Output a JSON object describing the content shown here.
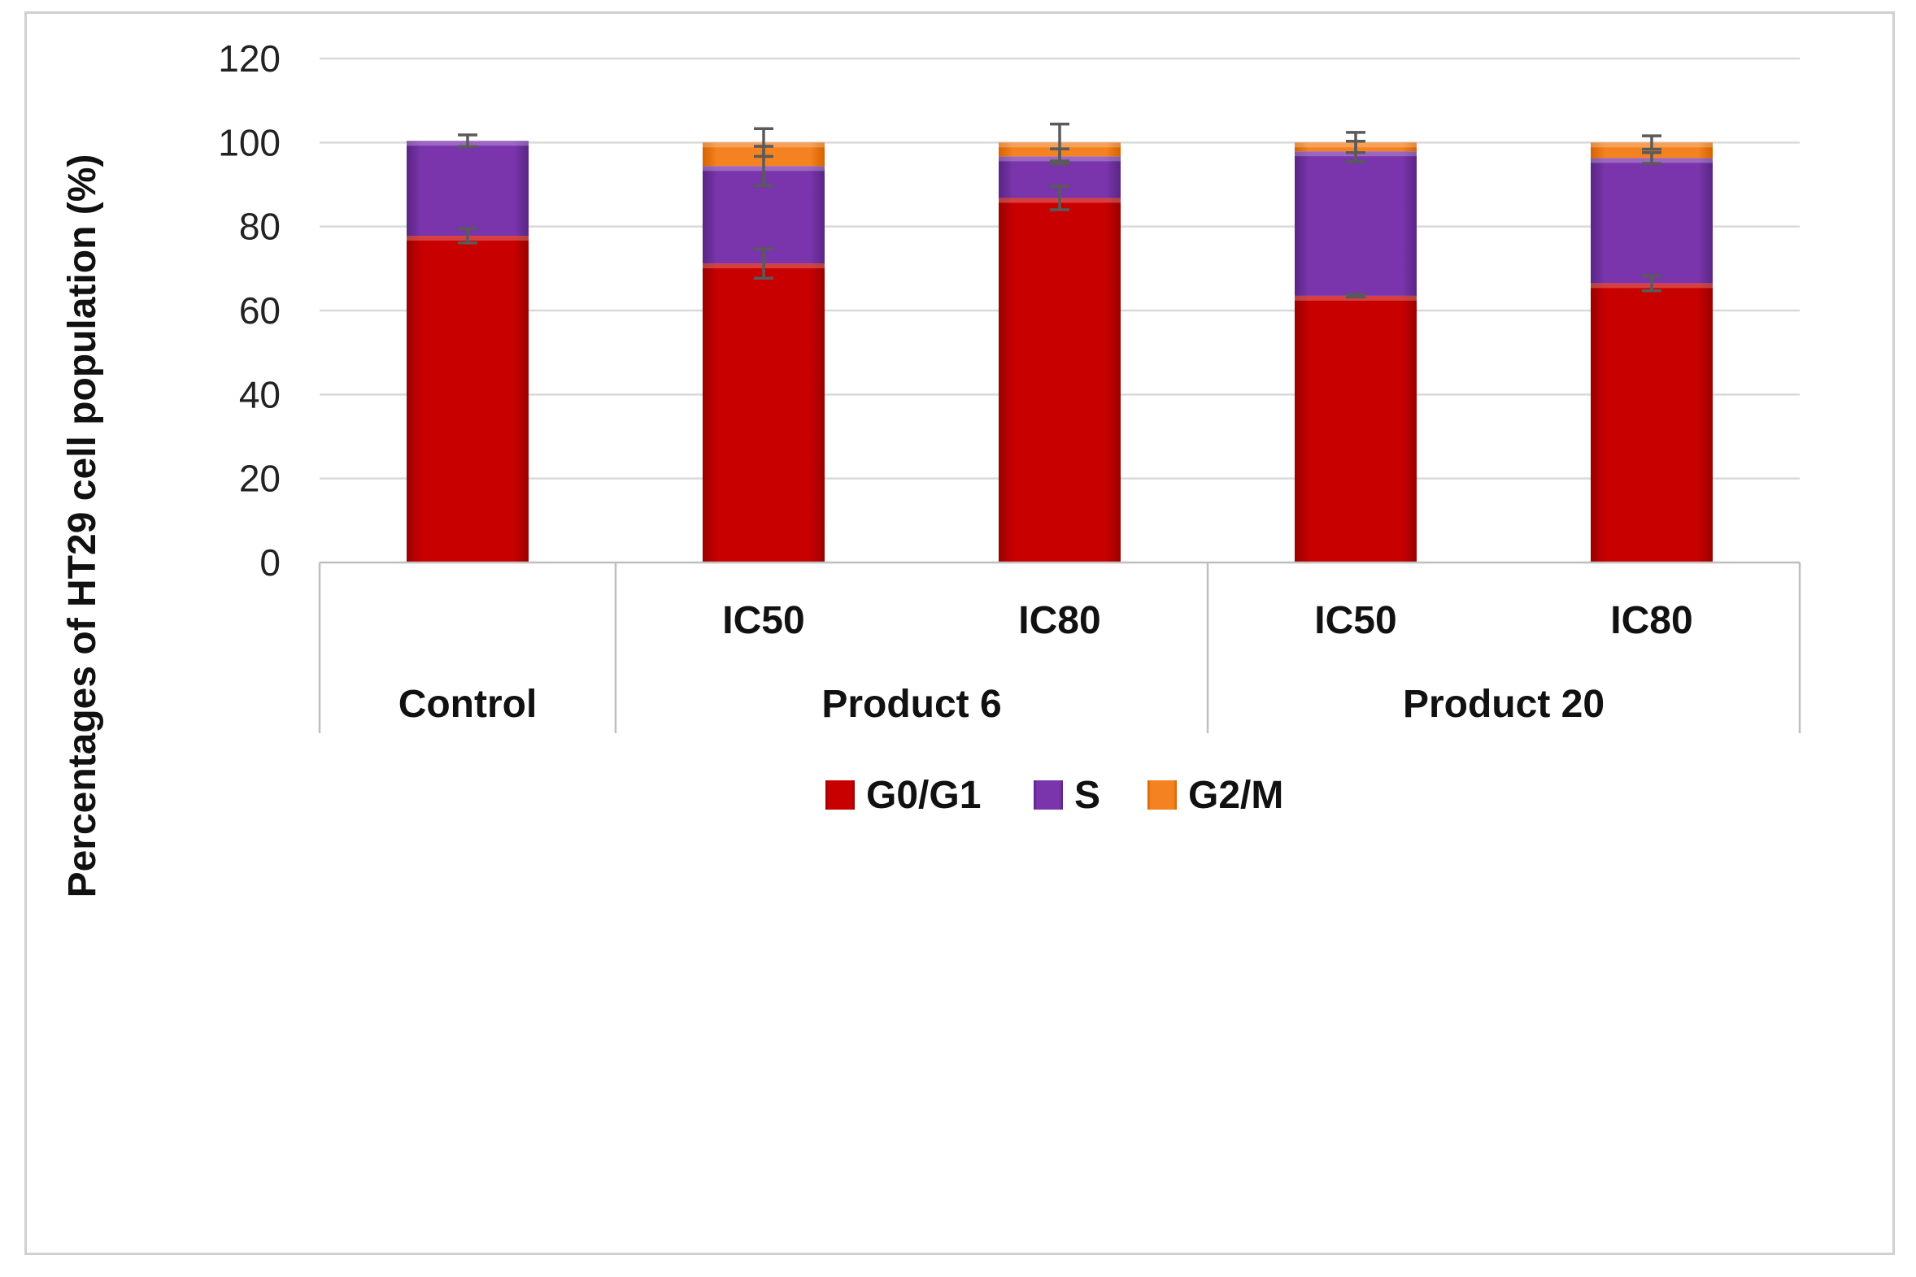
{
  "chart_data": {
    "type": "bar",
    "stacked": true,
    "title": "",
    "xlabel": "",
    "ylabel": "Percentages of  HT29 cell population (%)",
    "ylim": [
      0,
      120
    ],
    "yticks": [
      0,
      20,
      40,
      60,
      80,
      100,
      120
    ],
    "grid": true,
    "legend_position": "bottom",
    "groups": [
      {
        "label": "Control",
        "members": [
          0
        ]
      },
      {
        "label": "Product 6",
        "members": [
          1,
          2
        ]
      },
      {
        "label": "Product 20",
        "members": [
          3,
          4
        ]
      }
    ],
    "categories": [
      "",
      "IC50",
      "IC80",
      "IC50",
      "IC80"
    ],
    "series": [
      {
        "name": "G0/G1",
        "color": "#c80000",
        "values": [
          77.8,
          71.2,
          86.8,
          63.5,
          66.5
        ],
        "errors": [
          1.7,
          3.5,
          2.8,
          0.3,
          1.8
        ]
      },
      {
        "name": "S",
        "color": "#7030a0",
        "values": [
          22.6,
          23.2,
          9.9,
          34.4,
          29.8
        ],
        "errors": [
          1.4,
          4.7,
          1.8,
          2.4,
          1.3
        ]
      },
      {
        "name": "G2/M",
        "color": "#f07d1a",
        "values": [
          0,
          5.6,
          3.3,
          2.1,
          3.7
        ],
        "errors": [
          0,
          3.3,
          4.4,
          2.4,
          1.6
        ]
      }
    ]
  }
}
